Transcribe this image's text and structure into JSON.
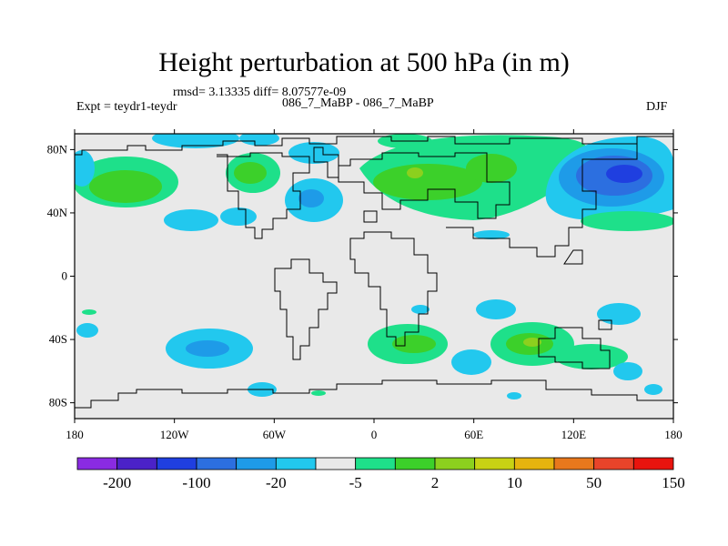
{
  "title": "Height perturbation at 500 hPa (in m)",
  "stats_line": "rmsd= 3.13335 diff= 8.07577e-09",
  "left_label": "Expt = teydr1-teydr",
  "center_label": "086_7_MaBP - 086_7_MaBP",
  "right_label": "DJF",
  "y_ticks": [
    "80N",
    "40N",
    "0",
    "40S",
    "80S"
  ],
  "x_ticks": [
    "180",
    "120W",
    "60W",
    "0",
    "60E",
    "120E",
    "180"
  ],
  "colorbar": {
    "colors": [
      "#8a2be2",
      "#4b22c8",
      "#1f3fe0",
      "#2c6fe0",
      "#1e9be8",
      "#22c8ee",
      "#e9e9e9",
      "#1ee08a",
      "#3cd02a",
      "#8cd01e",
      "#c8d214",
      "#e6b40e",
      "#e8781c",
      "#e8442a",
      "#e8140e"
    ],
    "labels": [
      "-200",
      "-100",
      "-20",
      "-5",
      "2",
      "10",
      "50",
      "150"
    ]
  }
}
